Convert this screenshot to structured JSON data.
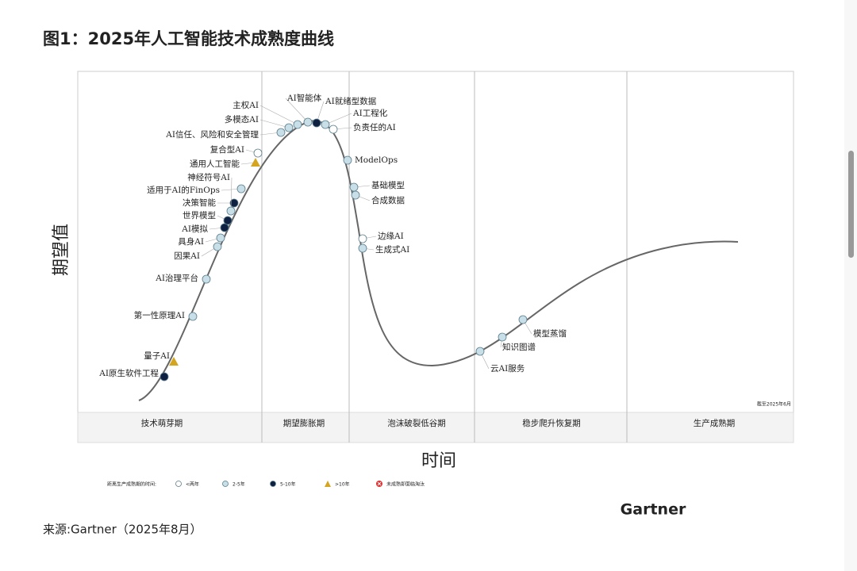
{
  "header": {
    "title": "图1：2025年人工智能技术成熟度曲线"
  },
  "diagram": {
    "y_axis_label": "期望值",
    "x_axis_label": "时间",
    "note": "截至2025年6月",
    "phases": [
      "技术萌芽期",
      "期望膨胀期",
      "泡沫破裂低谷期",
      "稳步爬升恢复期",
      "生产成熟期"
    ],
    "legend": {
      "title": "距离生产成熟期的时间:",
      "items": [
        {
          "label": "<两年",
          "color": "#ffffff"
        },
        {
          "label": "2-5年",
          "color": "#c9dfe8"
        },
        {
          "label": "5-10年",
          "color": "#0f2040"
        },
        {
          "label": ">10年",
          "color": "#d4a520"
        },
        {
          "label": "未成熟即面临淘汰",
          "color": "#e03030"
        }
      ]
    },
    "nodes": [
      {
        "label": "AI原生软件工程",
        "color": "#0f2040"
      },
      {
        "label": "量子AI",
        "color": "#d4a520"
      },
      {
        "label": "第一性原理AI",
        "color": "#c9dfe8"
      },
      {
        "label": "AI治理平台",
        "color": "#c9dfe8"
      },
      {
        "label": "因果AI",
        "color": "#c9dfe8"
      },
      {
        "label": "具身AI",
        "color": "#c9dfe8"
      },
      {
        "label": "AI模拟",
        "color": "#0f2040"
      },
      {
        "label": "世界模型",
        "color": "#0f2040"
      },
      {
        "label": "决策智能",
        "color": "#0f2040"
      },
      {
        "label": "适用于AI的FinOps",
        "color": "#c9dfe8"
      },
      {
        "label": "神经符号AI",
        "color": "#c9dfe8"
      },
      {
        "label": "通用人工智能",
        "color": "#d4a520"
      },
      {
        "label": "复合型AI",
        "color": "#ffffff"
      },
      {
        "label": "AI信任、风险和安全管理",
        "color": "#c9dfe8"
      },
      {
        "label": "多模态AI",
        "color": "#c9dfe8"
      },
      {
        "label": "主权AI",
        "color": "#c9dfe8"
      },
      {
        "label": "AI智能体",
        "color": "#c9dfe8"
      },
      {
        "label": "AI就绪型数据",
        "color": "#0f2040"
      },
      {
        "label": "AI工程化",
        "color": "#c9dfe8"
      },
      {
        "label": "负责任的AI",
        "color": "#ffffff"
      },
      {
        "label": "ModelOps",
        "color": "#c9dfe8"
      },
      {
        "label": "基础模型",
        "color": "#c9dfe8"
      },
      {
        "label": "合成数据",
        "color": "#c9dfe8"
      },
      {
        "label": "边缘AI",
        "color": "#ffffff"
      },
      {
        "label": "生成式AI",
        "color": "#c9dfe8"
      },
      {
        "label": "云AI服务",
        "color": "#c9dfe8"
      },
      {
        "label": "知识图谱",
        "color": "#c9dfe8"
      },
      {
        "label": "模型蒸馏",
        "color": "#c9dfe8"
      }
    ],
    "logo": "Gartner"
  },
  "footer": {
    "source": "来源:Gartner（2025年8月）"
  }
}
